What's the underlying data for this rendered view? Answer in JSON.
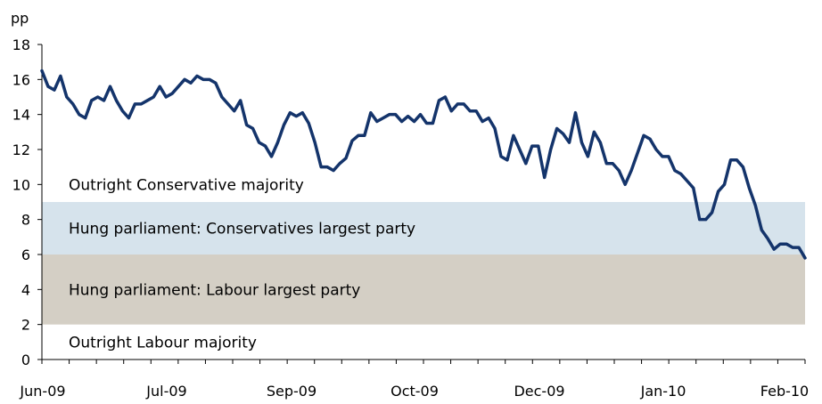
{
  "chart_data": {
    "type": "line",
    "ylabel": "pp",
    "xlabel": "",
    "title": "",
    "ylim": [
      0,
      18
    ],
    "yticks": [
      0,
      2,
      4,
      6,
      8,
      10,
      12,
      14,
      16,
      18
    ],
    "x_tick_labels": [
      "Jun-09",
      "Jul-09",
      "Sep-09",
      "Oct-09",
      "Dec-09",
      "Jan-10",
      "Feb-10"
    ],
    "grid": false,
    "bands": [
      {
        "label": "Hung parliament: Conservatives largest party",
        "from": 6,
        "to": 9,
        "color": "#d6e3ec"
      },
      {
        "label": "Hung parliament: Labour largest party",
        "from": 2,
        "to": 6,
        "color": "#d4cfc5"
      }
    ],
    "region_labels": [
      {
        "label": "Outright Conservative majority",
        "y": 10
      },
      {
        "label": "Outright Labour majority",
        "y": 1
      }
    ],
    "series": [
      {
        "color": "#14346b",
        "values": [
          16.5,
          15.6,
          15.4,
          16.2,
          15.0,
          14.6,
          14.0,
          13.8,
          14.8,
          15.0,
          14.8,
          15.6,
          14.8,
          14.2,
          13.8,
          14.6,
          14.6,
          14.8,
          15.0,
          15.6,
          15.0,
          15.2,
          15.6,
          16.0,
          15.8,
          16.2,
          16.0,
          16.0,
          15.8,
          15.0,
          14.6,
          14.2,
          14.8,
          13.4,
          13.2,
          12.4,
          12.2,
          11.6,
          12.4,
          13.4,
          14.1,
          13.9,
          14.1,
          13.5,
          12.4,
          11.0,
          11.0,
          10.8,
          11.2,
          11.5,
          12.5,
          12.8,
          12.8,
          14.1,
          13.6,
          13.8,
          14.0,
          14.0,
          13.6,
          13.9,
          13.6,
          14.0,
          13.5,
          13.5,
          14.8,
          15.0,
          14.2,
          14.6,
          14.6,
          14.2,
          14.2,
          13.6,
          13.8,
          13.2,
          11.6,
          11.4,
          12.8,
          12.0,
          11.2,
          12.2,
          12.2,
          10.4,
          12.0,
          13.2,
          12.9,
          12.4,
          14.1,
          12.4,
          11.6,
          13.0,
          12.4,
          11.2,
          11.2,
          10.8,
          10.0,
          10.8,
          11.8,
          12.8,
          12.6,
          12.0,
          11.6,
          11.6,
          10.8,
          10.6,
          10.2,
          9.8,
          8.0,
          8.0,
          8.4,
          9.6,
          10.0,
          11.4,
          11.4,
          11.0,
          9.8,
          8.8,
          7.4,
          6.9,
          6.3,
          6.6,
          6.6,
          6.4,
          6.4,
          5.8
        ]
      }
    ]
  }
}
